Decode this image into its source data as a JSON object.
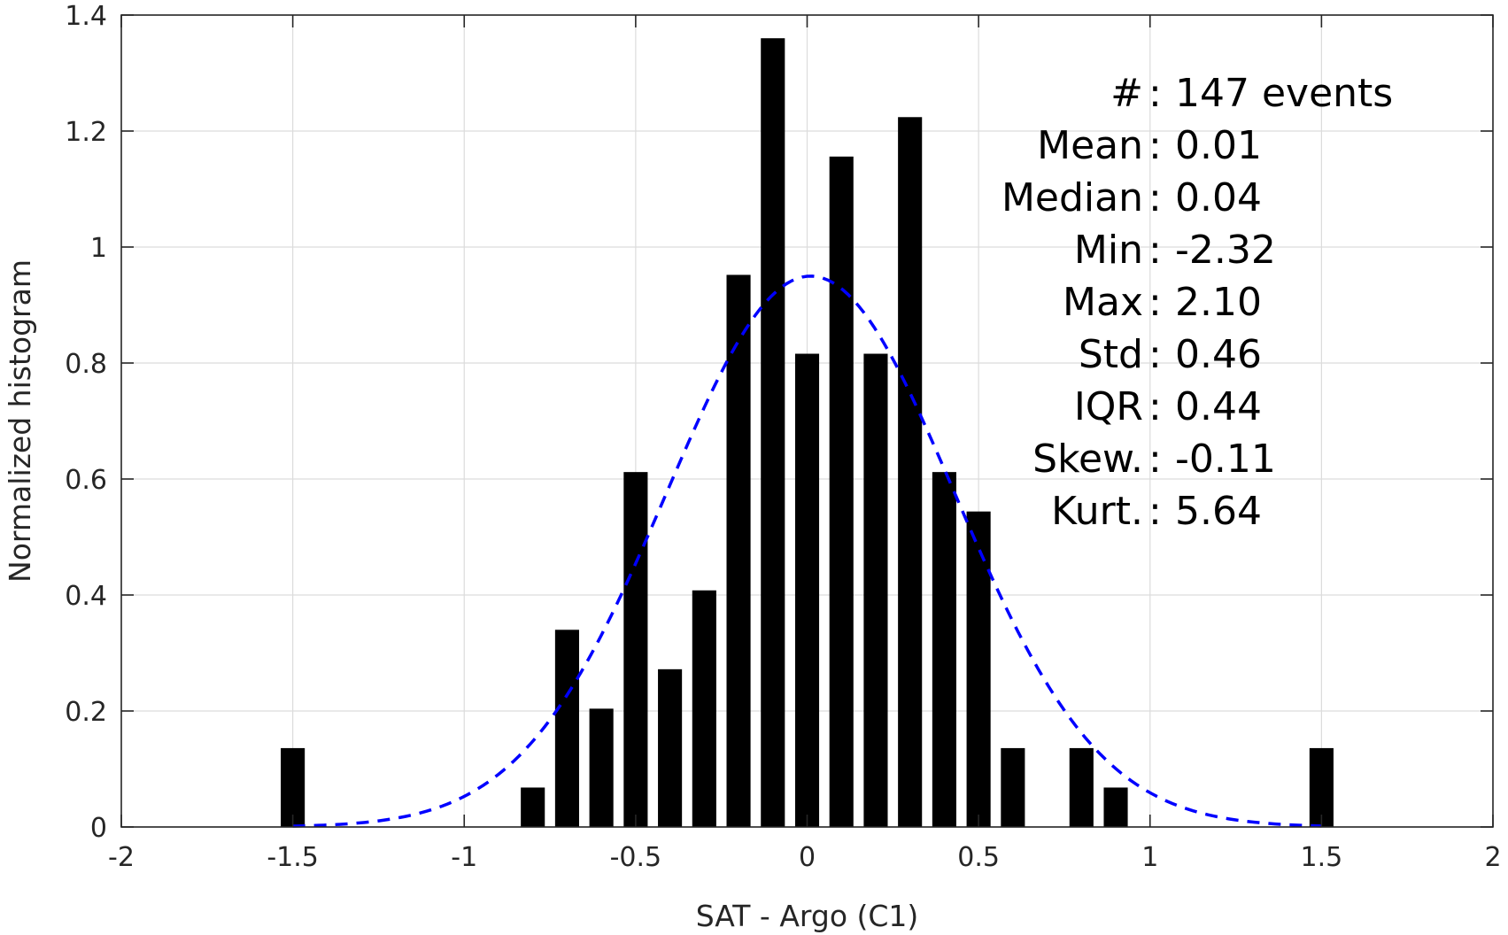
{
  "chart_data": {
    "type": "bar",
    "xlabel": "SAT - Argo (C1)",
    "ylabel": "Normalized histogram",
    "xlim": [
      -2,
      2
    ],
    "ylim": [
      0,
      1.4
    ],
    "xticks": [
      "-2",
      "-1.5",
      "-1",
      "-0.5",
      "0",
      "0.5",
      "1",
      "1.5",
      "2"
    ],
    "yticks": [
      "0",
      "0.2",
      "0.4",
      "0.6",
      "0.8",
      "1",
      "1.2",
      "1.4"
    ],
    "grid": true,
    "bar_width": 0.07,
    "bar_color": "#000000",
    "bins": [
      {
        "x": -1.5,
        "y": 0.136
      },
      {
        "x": -0.8,
        "y": 0.068
      },
      {
        "x": -0.7,
        "y": 0.34
      },
      {
        "x": -0.6,
        "y": 0.204
      },
      {
        "x": -0.5,
        "y": 0.612
      },
      {
        "x": -0.4,
        "y": 0.272
      },
      {
        "x": -0.3,
        "y": 0.408
      },
      {
        "x": -0.2,
        "y": 0.952
      },
      {
        "x": -0.1,
        "y": 1.36
      },
      {
        "x": 0.0,
        "y": 0.816
      },
      {
        "x": 0.1,
        "y": 1.156
      },
      {
        "x": 0.2,
        "y": 0.816
      },
      {
        "x": 0.3,
        "y": 1.224
      },
      {
        "x": 0.4,
        "y": 0.612
      },
      {
        "x": 0.5,
        "y": 0.544
      },
      {
        "x": 0.6,
        "y": 0.136
      },
      {
        "x": 0.8,
        "y": 0.136
      },
      {
        "x": 0.9,
        "y": 0.068
      },
      {
        "x": 1.5,
        "y": 0.136
      }
    ],
    "fit_curve": {
      "type": "normal",
      "mean": 0.01,
      "std": 0.42,
      "x_range": [
        -1.5,
        1.5
      ],
      "color": "#0000ff",
      "style": "dashed"
    },
    "stats": [
      {
        "label": "#  ",
        "sep": ":",
        "value": "147 events"
      },
      {
        "label": "Mean ",
        "sep": ":",
        "value": "0.01"
      },
      {
        "label": "Median ",
        "sep": ":",
        "value": "0.04"
      },
      {
        "label": "Min ",
        "sep": ":",
        "value": "-2.32"
      },
      {
        "label": "Max ",
        "sep": ":",
        "value": "2.10"
      },
      {
        "label": "Std ",
        "sep": ":",
        "value": "0.46"
      },
      {
        "label": "IQR ",
        "sep": ":",
        "value": "0.44"
      },
      {
        "label": "Skew. ",
        "sep": ":",
        "value": "-0.11"
      },
      {
        "label": "Kurt. ",
        "sep": ":",
        "value": "5.64"
      }
    ]
  }
}
